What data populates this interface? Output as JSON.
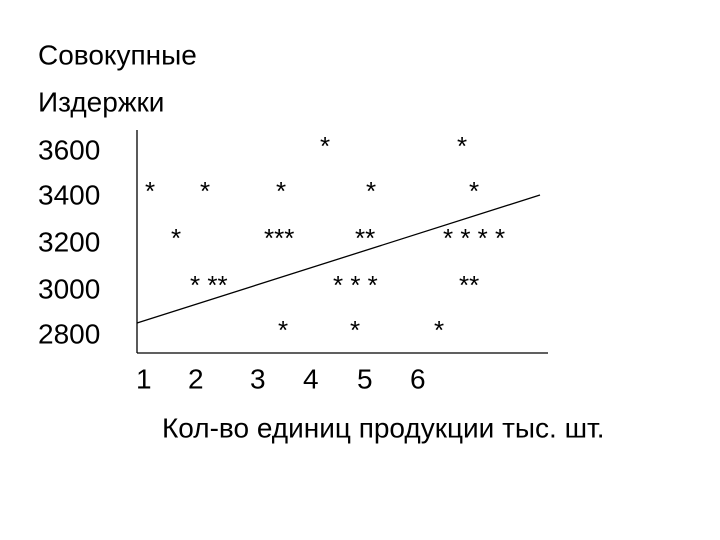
{
  "title_lines": [
    "Совокупные",
    "Издержки"
  ],
  "y_labels": [
    "3600",
    "3400",
    "3200",
    "3000",
    "2800"
  ],
  "x_labels": [
    "1",
    "2",
    "3",
    "4",
    "5",
    "6"
  ],
  "x_title": "Кол-во единиц продукции тыс. шт.",
  "star_rows": [
    [
      "*",
      "*"
    ],
    [
      "*",
      "*",
      "*",
      "*",
      "*"
    ],
    [
      "*",
      "***",
      "**",
      "* * * *"
    ],
    [
      "* **",
      "* * *",
      "**"
    ],
    [
      "*",
      "*",
      "*"
    ]
  ]
}
